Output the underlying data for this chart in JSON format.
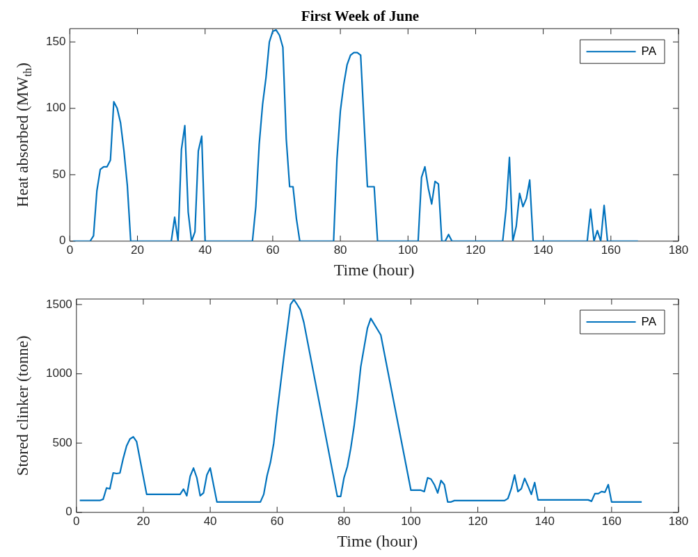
{
  "chart_data": [
    {
      "type": "line",
      "title": "First Week of June",
      "xlabel": "Time (hour)",
      "ylabel": "Heat absorbed (MW$_{th}$)",
      "xlim": [
        0,
        180
      ],
      "xticks": [
        0,
        20,
        40,
        60,
        80,
        100,
        120,
        140,
        160,
        180
      ],
      "ylim": [
        0,
        160
      ],
      "yticks": [
        0,
        50,
        100,
        150
      ],
      "grid": false,
      "legend": "top right",
      "marker": "none",
      "line_style": "solid",
      "series": [
        {
          "name": "PA",
          "color": "#0072bd",
          "x": [
            1,
            6,
            7,
            8,
            9,
            10,
            11,
            12,
            13,
            14,
            15,
            16,
            17,
            18,
            30,
            31,
            32,
            33,
            34,
            35,
            36,
            37,
            38,
            39,
            40,
            54,
            55,
            56,
            57,
            58,
            59,
            60,
            61,
            62,
            63,
            64,
            65,
            66,
            67,
            68,
            78,
            79,
            80,
            81,
            82,
            83,
            84,
            85,
            86,
            87,
            88,
            89,
            90,
            91,
            103,
            104,
            105,
            106,
            107,
            108,
            109,
            110,
            111,
            112,
            113,
            128,
            129,
            130,
            131,
            132,
            133,
            134,
            135,
            136,
            137,
            153,
            154,
            155,
            156,
            157,
            158,
            159,
            168
          ],
          "values": [
            0,
            0,
            4,
            38,
            54,
            56,
            56,
            61,
            105,
            100,
            89,
            68,
            42,
            0,
            0,
            18,
            0,
            69,
            87,
            22,
            0,
            7,
            68,
            79,
            0,
            0,
            26,
            73,
            103,
            123,
            150,
            158,
            159,
            155,
            146,
            77,
            41,
            41,
            17,
            0,
            0,
            62,
            98,
            118,
            133,
            140,
            142,
            142,
            140,
            90,
            41,
            41,
            41,
            0,
            0,
            48,
            56,
            40,
            28,
            45,
            43,
            0,
            0,
            5,
            0,
            0,
            24,
            63,
            0,
            11,
            36,
            26,
            32,
            46,
            0,
            0,
            24,
            0,
            8,
            0,
            27,
            0,
            0
          ]
        }
      ]
    },
    {
      "type": "line",
      "xlabel": "Time (hour)",
      "ylabel": "Stored clinker (tonne)",
      "xlim": [
        0,
        180
      ],
      "xticks": [
        0,
        20,
        40,
        60,
        80,
        100,
        120,
        140,
        160,
        180
      ],
      "ylim": [
        0,
        1540
      ],
      "yticks": [
        0,
        500,
        1000,
        1500
      ],
      "grid": false,
      "legend": "top right",
      "marker": "none",
      "line_style": "solid",
      "series": [
        {
          "name": "PA",
          "color": "#0072bd",
          "x": [
            1,
            7,
            8,
            9,
            10,
            11,
            12,
            13,
            14,
            15,
            16,
            17,
            18,
            21,
            31,
            32,
            33,
            34,
            35,
            36,
            37,
            38,
            39,
            40,
            42,
            55,
            56,
            57,
            58,
            59,
            60,
            62,
            64,
            65,
            66,
            67,
            68,
            78,
            79,
            80,
            81,
            82,
            83,
            84,
            85,
            87,
            88,
            91,
            100,
            103,
            104,
            105,
            106,
            107,
            108,
            109,
            110,
            111,
            112,
            113,
            128,
            129,
            130,
            131,
            132,
            133,
            134,
            135,
            136,
            137,
            138,
            153,
            154,
            155,
            156,
            157,
            158,
            159,
            160,
            169
          ],
          "values": [
            86,
            86,
            95,
            176,
            170,
            285,
            280,
            284,
            390,
            480,
            530,
            545,
            510,
            130,
            130,
            168,
            120,
            260,
            320,
            250,
            120,
            140,
            270,
            320,
            75,
            75,
            130,
            265,
            360,
            500,
            720,
            1120,
            1500,
            1535,
            1500,
            1460,
            1370,
            115,
            115,
            250,
            330,
            460,
            620,
            820,
            1050,
            1330,
            1400,
            1280,
            160,
            160,
            150,
            250,
            240,
            200,
            140,
            230,
            200,
            75,
            75,
            85,
            85,
            100,
            170,
            270,
            150,
            170,
            245,
            190,
            130,
            215,
            90,
            90,
            80,
            135,
            135,
            150,
            145,
            200,
            75,
            75
          ]
        }
      ]
    }
  ]
}
